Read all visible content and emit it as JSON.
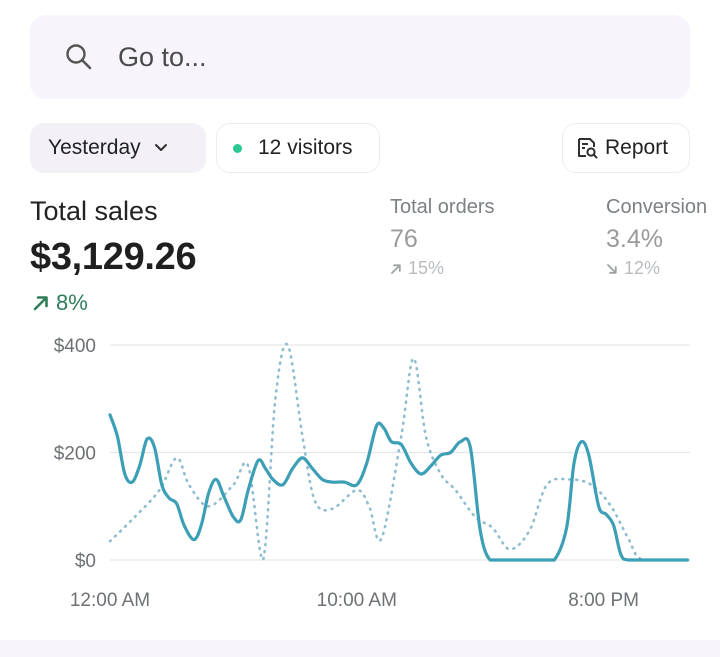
{
  "search": {
    "placeholder": "Go to...",
    "icon": "search-icon"
  },
  "filters": {
    "date_label": "Yesterday",
    "visitors_label": "12 visitors",
    "report_label": "Report",
    "live_dot_color": "#29c990"
  },
  "metrics": {
    "total_sales": {
      "title": "Total sales",
      "value": "$3,129.26",
      "change": "8%",
      "trend": "up",
      "change_color": "#2f7d59"
    },
    "total_orders": {
      "title": "Total orders",
      "value": "76",
      "change": "15%",
      "trend": "up"
    },
    "conversion": {
      "title": "Conversion",
      "value": "3.4%",
      "change": "12%",
      "trend": "down"
    }
  },
  "chart_data": {
    "type": "line",
    "y_tick_labels": [
      "$400",
      "$200",
      "$0"
    ],
    "y_ticks": [
      400,
      200,
      0
    ],
    "x_tick_labels": [
      "12:00 AM",
      "10:00 AM",
      "8:00 PM"
    ],
    "x_ticks": [
      0,
      10,
      20
    ],
    "ylim": [
      0,
      400
    ],
    "xlim": [
      0,
      23.5
    ],
    "grid": true,
    "series": [
      {
        "style": "solid",
        "color": "#3c9fb6",
        "points": [
          [
            0.0,
            270
          ],
          [
            0.3,
            230
          ],
          [
            0.6,
            160
          ],
          [
            0.9,
            145
          ],
          [
            1.2,
            175
          ],
          [
            1.5,
            225
          ],
          [
            1.8,
            210
          ],
          [
            2.1,
            140
          ],
          [
            2.4,
            115
          ],
          [
            2.7,
            105
          ],
          [
            3.0,
            65
          ],
          [
            3.4,
            38
          ],
          [
            3.7,
            65
          ],
          [
            4.0,
            125
          ],
          [
            4.3,
            150
          ],
          [
            4.6,
            120
          ],
          [
            5.0,
            80
          ],
          [
            5.3,
            75
          ],
          [
            5.6,
            130
          ],
          [
            6.0,
            185
          ],
          [
            6.3,
            170
          ],
          [
            6.6,
            150
          ],
          [
            7.0,
            140
          ],
          [
            7.4,
            170
          ],
          [
            7.8,
            190
          ],
          [
            8.2,
            170
          ],
          [
            8.6,
            150
          ],
          [
            9.0,
            145
          ],
          [
            9.5,
            145
          ],
          [
            10.0,
            140
          ],
          [
            10.4,
            180
          ],
          [
            10.8,
            250
          ],
          [
            11.1,
            245
          ],
          [
            11.4,
            220
          ],
          [
            11.8,
            215
          ],
          [
            12.2,
            180
          ],
          [
            12.6,
            160
          ],
          [
            13.0,
            175
          ],
          [
            13.4,
            195
          ],
          [
            13.8,
            200
          ],
          [
            14.2,
            220
          ],
          [
            14.6,
            210
          ],
          [
            15.0,
            55
          ],
          [
            15.4,
            0
          ],
          [
            16.0,
            0
          ],
          [
            17.0,
            0
          ],
          [
            17.5,
            0
          ],
          [
            18.0,
            0
          ],
          [
            18.5,
            60
          ],
          [
            18.8,
            180
          ],
          [
            19.1,
            220
          ],
          [
            19.4,
            195
          ],
          [
            19.8,
            100
          ],
          [
            20.1,
            85
          ],
          [
            20.4,
            65
          ],
          [
            20.7,
            10
          ],
          [
            21.0,
            0
          ],
          [
            22.0,
            0
          ],
          [
            23.4,
            0
          ]
        ]
      },
      {
        "style": "dotted",
        "color": "#8fbdd0",
        "points": [
          [
            0.0,
            35
          ],
          [
            1.0,
            80
          ],
          [
            2.0,
            130
          ],
          [
            2.7,
            190
          ],
          [
            3.2,
            140
          ],
          [
            4.0,
            100
          ],
          [
            5.0,
            140
          ],
          [
            5.6,
            175
          ],
          [
            6.2,
            0
          ],
          [
            6.7,
            300
          ],
          [
            7.2,
            400
          ],
          [
            7.8,
            230
          ],
          [
            8.3,
            110
          ],
          [
            9.0,
            95
          ],
          [
            10.0,
            130
          ],
          [
            10.5,
            100
          ],
          [
            11.0,
            40
          ],
          [
            11.8,
            230
          ],
          [
            12.3,
            375
          ],
          [
            12.8,
            230
          ],
          [
            13.4,
            160
          ],
          [
            14.0,
            130
          ],
          [
            14.8,
            80
          ],
          [
            15.5,
            60
          ],
          [
            16.2,
            20
          ],
          [
            17.0,
            55
          ],
          [
            17.7,
            140
          ],
          [
            18.6,
            150
          ],
          [
            19.5,
            140
          ],
          [
            20.3,
            100
          ],
          [
            21.0,
            40
          ],
          [
            21.6,
            0
          ],
          [
            23.4,
            0
          ]
        ]
      }
    ]
  }
}
